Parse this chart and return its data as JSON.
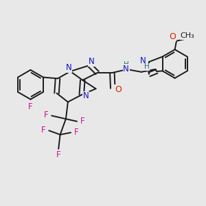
{
  "bg_color": "#e8e8e8",
  "bond_color": "#1a1a1a",
  "bond_width": 1.4,
  "nitrogen_color": "#1010cc",
  "oxygen_color": "#cc2200",
  "fluorine_color": "#cc1199",
  "teal_color": "#336677",
  "figsize": [
    3.0,
    3.0
  ],
  "dpi": 100,
  "xlim": [
    0,
    10
  ],
  "ylim": [
    0,
    10
  ]
}
